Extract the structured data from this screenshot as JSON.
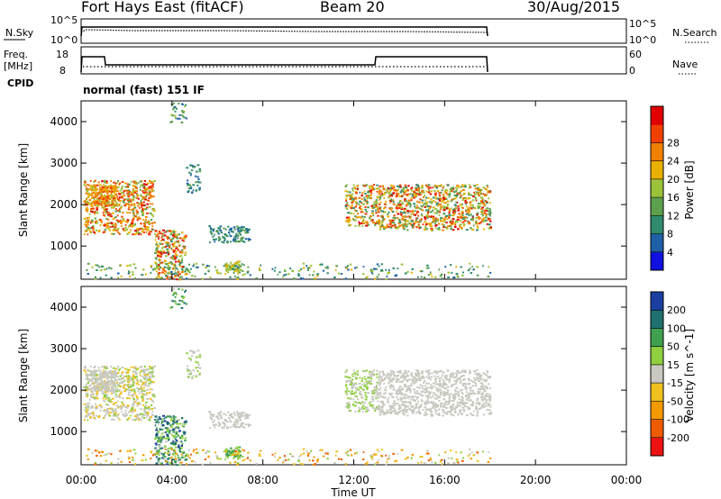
{
  "header": {
    "station": "Fort Hays East (fitACF)",
    "beam": "Beam 20",
    "date": "30/Aug/2015"
  },
  "noise_panel": {
    "left_label": "N.Sky",
    "left_ticks": [
      "10^5",
      "10^0"
    ],
    "right_label": "N.Search",
    "right_ticks": [
      "10^5",
      "10^0"
    ]
  },
  "freq_panel": {
    "left_label_1": "Freq.",
    "left_label_2": "[MHz]",
    "left_ticks": [
      "18",
      "8"
    ],
    "right_label": "Nave",
    "right_ticks": [
      "60",
      "0"
    ]
  },
  "cpid": {
    "label": "CPID",
    "program": "normal (fast) 151 IF"
  },
  "colors": {
    "power": [
      "#1010e0",
      "#1f5fa8",
      "#2f8a6e",
      "#5da04e",
      "#9cc23a",
      "#e8b000",
      "#f08000",
      "#f04000",
      "#e00000"
    ],
    "velocity": [
      "#ee1111",
      "#f05a00",
      "#f29a00",
      "#f0c020",
      "#c8c8c0",
      "#8fcf40",
      "#3fa050",
      "#207070",
      "#1a3fa0"
    ]
  },
  "chart_data": [
    {
      "type": "heatmap",
      "title": "Power",
      "ylabel": "Slant Range [km]",
      "xlabel": "Time UT",
      "xlim": [
        0,
        24
      ],
      "ylim": [
        200,
        4500
      ],
      "yticks": [
        "1000",
        "2000",
        "3000",
        "4000"
      ],
      "xticks": [
        "00:00",
        "04:00",
        "08:00",
        "12:00",
        "16:00",
        "20:00",
        "00:00"
      ],
      "colorbar_label": "Power [dB]",
      "colorbar_ticks": [
        "4",
        "8",
        "12",
        "16",
        "20",
        "24",
        "28"
      ],
      "colorbar_range": [
        0,
        32
      ]
    },
    {
      "type": "heatmap",
      "title": "Velocity",
      "ylabel": "Slant Range [km]",
      "xlabel": "Time UT",
      "xlim": [
        0,
        24
      ],
      "ylim": [
        200,
        4500
      ],
      "yticks": [
        "1000",
        "2000",
        "3000",
        "4000"
      ],
      "xticks": [
        "00:00",
        "04:00",
        "08:00",
        "12:00",
        "16:00",
        "20:00",
        "00:00"
      ],
      "colorbar_label": "Velocity [m s^-1]",
      "colorbar_ticks": [
        "-200",
        "-100",
        "-50",
        "-15",
        "15",
        "50",
        "100",
        "200"
      ]
    }
  ],
  "xaxis": {
    "title": "Time UT"
  }
}
